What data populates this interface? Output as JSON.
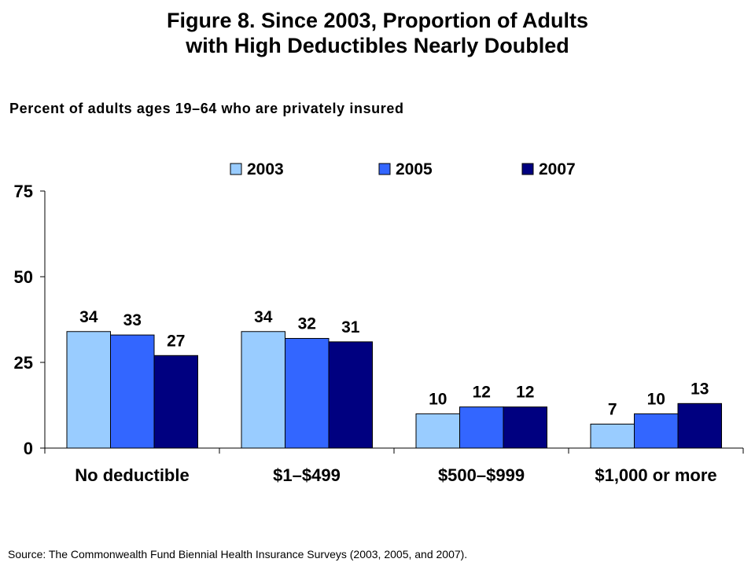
{
  "title_line1": "Figure 8. Since 2003, Proportion of Adults",
  "title_line2": "with High Deductibles Nearly Doubled",
  "subtitle": "Percent of adults ages 19–64 who are privately insured",
  "source": "Source: The Commonwealth Fund Biennial Health Insurance Surveys (2003, 2005, and 2007).",
  "chart_data": {
    "type": "bar",
    "title": "Figure 8. Since 2003, Proportion of Adults with High Deductibles Nearly Doubled",
    "subtitle": "Percent of adults ages 19–64 who are privately insured",
    "xlabel": "",
    "ylabel": "",
    "ylim": [
      0,
      75
    ],
    "yticks": [
      0,
      25,
      50,
      75
    ],
    "grid": false,
    "legend_position": "top",
    "categories": [
      "No deductible",
      "$1–$499",
      "$500–$999",
      "$1,000 or more"
    ],
    "series": [
      {
        "name": "2003",
        "color": "#99ccff",
        "values": [
          34,
          34,
          10,
          7
        ]
      },
      {
        "name": "2005",
        "color": "#3366ff",
        "values": [
          33,
          32,
          12,
          10
        ]
      },
      {
        "name": "2007",
        "color": "#000080",
        "values": [
          27,
          31,
          12,
          13
        ]
      }
    ]
  }
}
